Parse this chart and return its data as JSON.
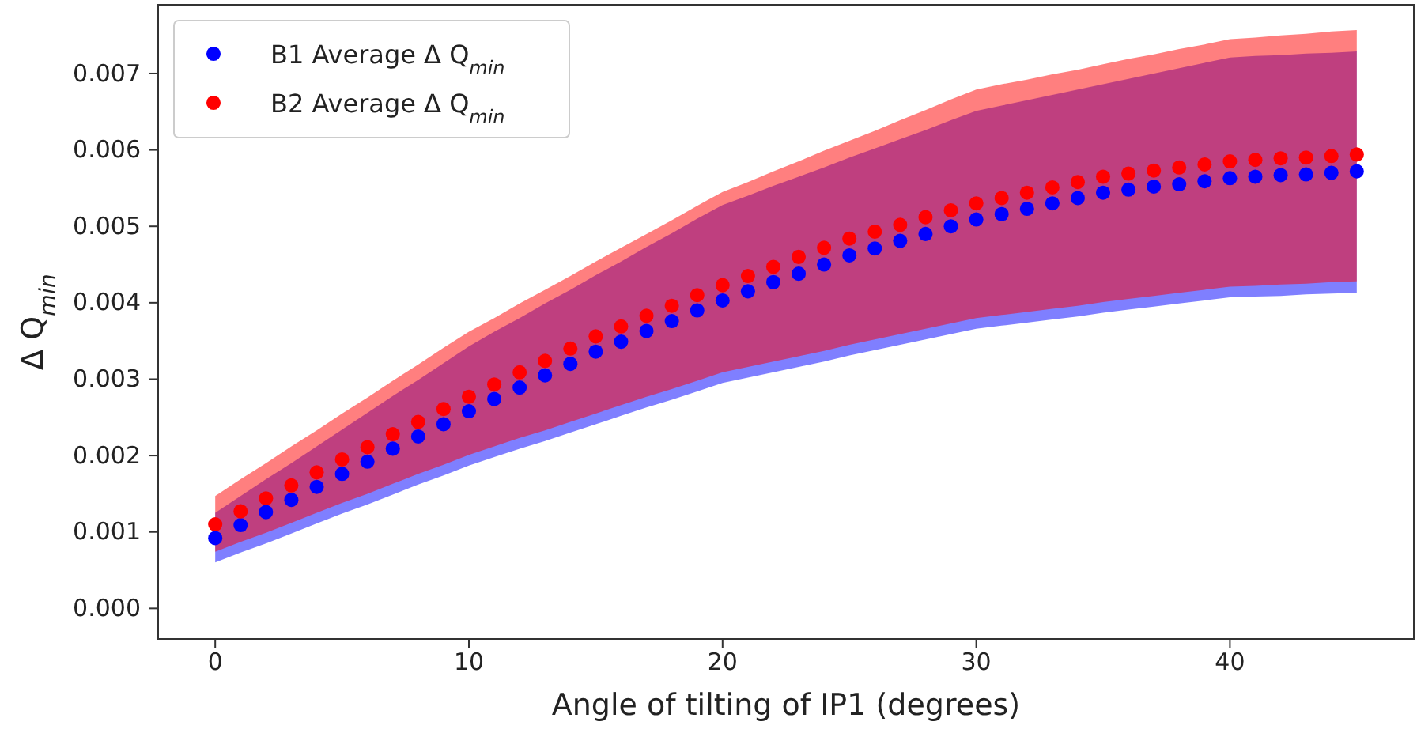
{
  "chart_data": {
    "type": "scatter",
    "xlabel": "Angle of tilting of IP1 (degrees)",
    "ylabel": "Δ Q$_{min}$",
    "x": [
      0,
      1,
      2,
      3,
      4,
      5,
      6,
      7,
      8,
      9,
      10,
      11,
      12,
      13,
      14,
      15,
      16,
      17,
      18,
      19,
      20,
      21,
      22,
      23,
      24,
      25,
      26,
      27,
      28,
      29,
      30,
      31,
      32,
      33,
      34,
      35,
      36,
      37,
      38,
      39,
      40,
      41,
      42,
      43,
      44,
      45
    ],
    "xlim": [
      -2.25,
      47.25
    ],
    "xticks": [
      0,
      10,
      20,
      30,
      40
    ],
    "ylim": [
      -0.0004,
      0.0079
    ],
    "yticks": [
      {
        "value": 0,
        "label": "0.000"
      },
      {
        "value": 0.001,
        "label": "0.001"
      },
      {
        "value": 0.002,
        "label": "0.002"
      },
      {
        "value": 0.003,
        "label": "0.003"
      },
      {
        "value": 0.004,
        "label": "0.004"
      },
      {
        "value": 0.005,
        "label": "0.005"
      },
      {
        "value": 0.006,
        "label": "0.006"
      },
      {
        "value": 0.007,
        "label": "0.007"
      }
    ],
    "marker": "circle",
    "legend": "top left",
    "grid": false,
    "series": [
      {
        "name": "B1 Average Δ Q$_{min}$",
        "color": "#0000ff",
        "values": [
          0.00092,
          0.00109,
          0.00126,
          0.00142,
          0.00159,
          0.00176,
          0.00192,
          0.00209,
          0.00225,
          0.00241,
          0.00258,
          0.00274,
          0.00289,
          0.00305,
          0.0032,
          0.00336,
          0.00349,
          0.00363,
          0.00376,
          0.0039,
          0.00403,
          0.00415,
          0.00427,
          0.00438,
          0.0045,
          0.00462,
          0.00471,
          0.00481,
          0.0049,
          0.005,
          0.00509,
          0.00516,
          0.00523,
          0.0053,
          0.00537,
          0.00544,
          0.00548,
          0.00552,
          0.00555,
          0.00559,
          0.00563,
          0.00565,
          0.00567,
          0.00568,
          0.0057,
          0.00572
        ],
        "lower": [
          0.0006,
          0.00073,
          0.00085,
          0.00098,
          0.00111,
          0.00124,
          0.00136,
          0.00149,
          0.00162,
          0.00174,
          0.00187,
          0.00198,
          0.00209,
          0.00219,
          0.0023,
          0.00241,
          0.00252,
          0.00263,
          0.00273,
          0.00284,
          0.00295,
          0.00302,
          0.00309,
          0.00316,
          0.00323,
          0.00331,
          0.00338,
          0.00345,
          0.00352,
          0.00359,
          0.00366,
          0.0037,
          0.00374,
          0.00378,
          0.00382,
          0.00387,
          0.00391,
          0.00395,
          0.00399,
          0.00403,
          0.00407,
          0.00408,
          0.00409,
          0.00411,
          0.00412,
          0.00413
        ],
        "upper": [
          0.00125,
          0.00147,
          0.00169,
          0.0019,
          0.00212,
          0.00234,
          0.00256,
          0.00278,
          0.00299,
          0.00321,
          0.00343,
          0.00362,
          0.0038,
          0.00399,
          0.00417,
          0.00436,
          0.00454,
          0.00473,
          0.00491,
          0.0051,
          0.00528,
          0.0054,
          0.00553,
          0.00565,
          0.00577,
          0.0059,
          0.00602,
          0.00614,
          0.00626,
          0.00639,
          0.00651,
          0.00658,
          0.00665,
          0.00672,
          0.00679,
          0.00686,
          0.00693,
          0.007,
          0.00707,
          0.00714,
          0.00721,
          0.00723,
          0.00724,
          0.00726,
          0.00727,
          0.00729
        ]
      },
      {
        "name": "B2 Average Δ Q$_{min}$",
        "color": "#ff0000",
        "values": [
          0.0011,
          0.00127,
          0.00144,
          0.00161,
          0.00178,
          0.00195,
          0.00211,
          0.00228,
          0.00244,
          0.00261,
          0.00277,
          0.00293,
          0.00309,
          0.00324,
          0.0034,
          0.00356,
          0.00369,
          0.00383,
          0.00396,
          0.0041,
          0.00423,
          0.00435,
          0.00447,
          0.0046,
          0.00472,
          0.00484,
          0.00493,
          0.00502,
          0.00512,
          0.00521,
          0.0053,
          0.00537,
          0.00544,
          0.00551,
          0.00558,
          0.00565,
          0.00569,
          0.00573,
          0.00577,
          0.00581,
          0.00585,
          0.00587,
          0.00589,
          0.0059,
          0.00592,
          0.00594
        ],
        "lower": [
          0.00074,
          0.00087,
          0.00099,
          0.00112,
          0.00125,
          0.00138,
          0.0015,
          0.00163,
          0.00176,
          0.00188,
          0.00201,
          0.00212,
          0.00223,
          0.00233,
          0.00244,
          0.00255,
          0.00266,
          0.00277,
          0.00287,
          0.00298,
          0.00309,
          0.00316,
          0.00323,
          0.0033,
          0.00337,
          0.00345,
          0.00352,
          0.00359,
          0.00366,
          0.00373,
          0.0038,
          0.00384,
          0.00388,
          0.00392,
          0.00396,
          0.00401,
          0.00405,
          0.00409,
          0.00413,
          0.00417,
          0.00421,
          0.00422,
          0.00424,
          0.00425,
          0.00427,
          0.00428
        ],
        "upper": [
          0.00147,
          0.00169,
          0.0019,
          0.00212,
          0.00233,
          0.00255,
          0.00276,
          0.00298,
          0.00319,
          0.00341,
          0.00362,
          0.0038,
          0.00399,
          0.00417,
          0.00435,
          0.00454,
          0.00472,
          0.0049,
          0.00508,
          0.00527,
          0.00545,
          0.00558,
          0.00572,
          0.00585,
          0.00599,
          0.00612,
          0.00625,
          0.00639,
          0.00652,
          0.00666,
          0.00679,
          0.00686,
          0.00692,
          0.00699,
          0.00705,
          0.00712,
          0.00719,
          0.00725,
          0.00732,
          0.00738,
          0.00745,
          0.00747,
          0.0075,
          0.00752,
          0.00755,
          0.00757
        ]
      }
    ]
  }
}
